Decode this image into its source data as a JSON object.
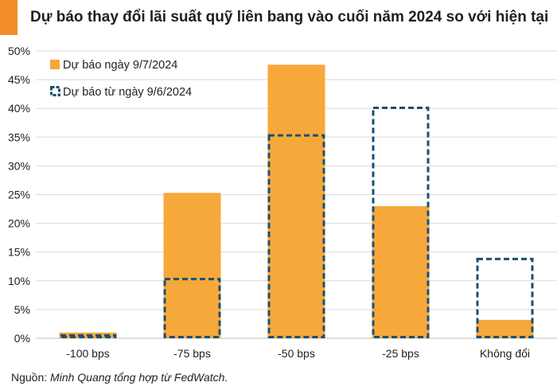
{
  "colors": {
    "accent": "#F28C28",
    "bar_fill": "#F7A83A",
    "outline": "#1B4F72",
    "grid": "#D9D9D9"
  },
  "title": "Dự báo thay đổi lãi suất quỹ liên bang vào cuối năm 2024 so với hiện tại",
  "source": {
    "prefix": "Nguồn: ",
    "text": "Minh Quang tổng hợp từ FedWatch."
  },
  "chart_data": {
    "type": "bar",
    "categories": [
      "-100 bps",
      "-75 bps",
      "-50 bps",
      "-25 bps",
      "Không đổi"
    ],
    "series": [
      {
        "name": "Dự báo ngày 9/7/2024",
        "style": "filled",
        "values": [
          1.0,
          25.3,
          47.6,
          23.0,
          3.2
        ]
      },
      {
        "name": "Dự báo từ ngày 9/6/2024",
        "style": "dashed-outline",
        "values": [
          0.5,
          10.3,
          35.3,
          40.1,
          13.8
        ]
      }
    ],
    "ylim": [
      0,
      50
    ],
    "yticks": [
      "0%",
      "5%",
      "10%",
      "15%",
      "20%",
      "25%",
      "30%",
      "35%",
      "40%",
      "45%",
      "50%"
    ],
    "grid": true,
    "legend_position": "top-left"
  }
}
